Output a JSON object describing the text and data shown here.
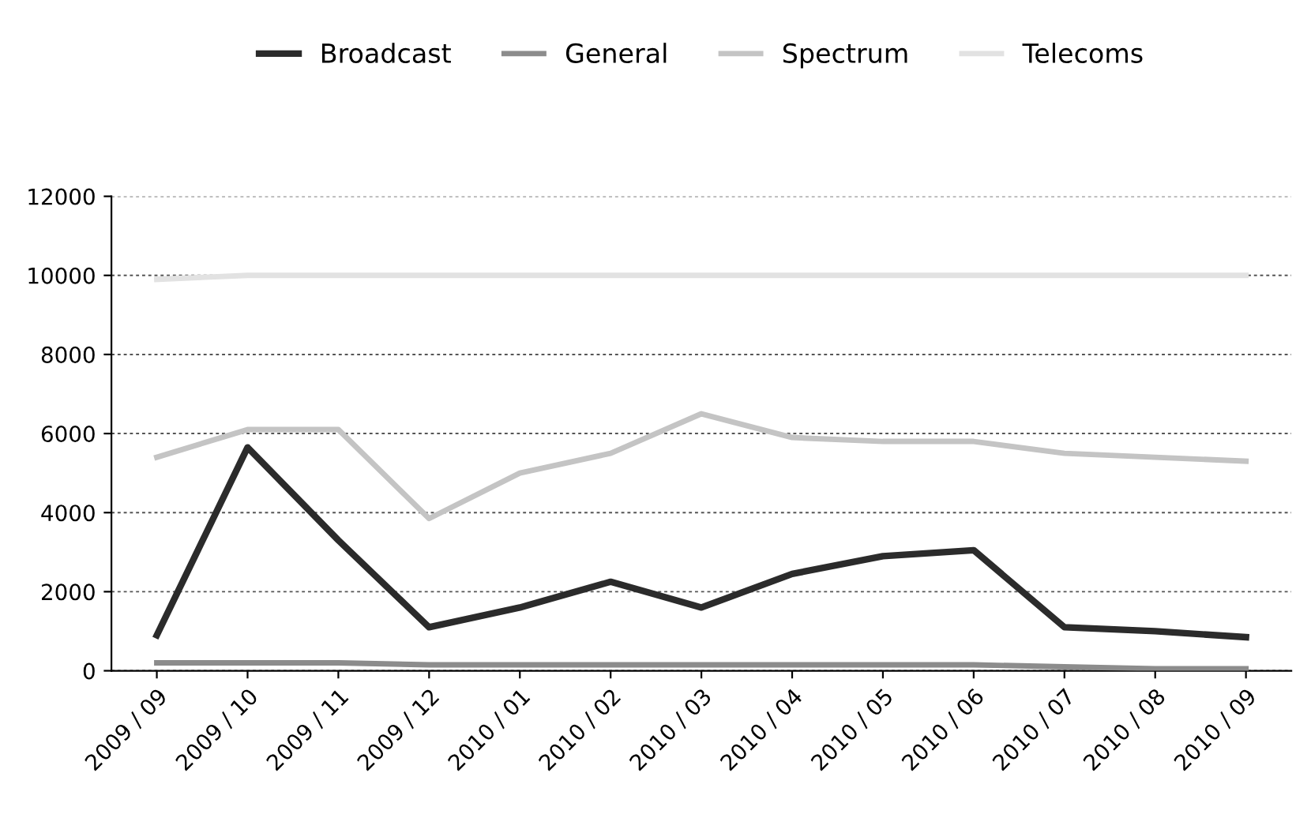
{
  "chart_data": {
    "type": "line",
    "categories": [
      "2009 / 09",
      "2009 / 10",
      "2009 / 11",
      "2009 / 12",
      "2010 / 01",
      "2010 / 02",
      "2010 / 03",
      "2010 / 04",
      "2010 / 05",
      "2010 / 06",
      "2010 / 07",
      "2010 / 08",
      "2010 / 09"
    ],
    "series": [
      {
        "name": "Broadcast",
        "color": "#2b2b2b",
        "values": [
          900,
          5650,
          3300,
          1100,
          1600,
          2250,
          1600,
          2450,
          2900,
          3050,
          1100,
          1000,
          850
        ]
      },
      {
        "name": "General",
        "color": "#8c8c8c",
        "values": [
          200,
          200,
          200,
          150,
          150,
          150,
          150,
          150,
          150,
          150,
          100,
          50,
          50
        ]
      },
      {
        "name": "Spectrum",
        "color": "#c4c4c4",
        "values": [
          5400,
          6100,
          6100,
          3850,
          5000,
          5500,
          6500,
          5900,
          5800,
          5800,
          5500,
          5400,
          5300
        ]
      },
      {
        "name": "Telecoms",
        "color": "#e2e2e2",
        "values": [
          9900,
          10000,
          10000,
          10000,
          10000,
          10000,
          10000,
          10000,
          10000,
          10000,
          10000,
          10000,
          10000
        ]
      }
    ],
    "ylim": [
      0,
      12000
    ],
    "yticks": [
      0,
      2000,
      4000,
      6000,
      8000,
      10000,
      12000
    ],
    "grid": "y",
    "legend": "top",
    "marker": "none",
    "line_style": "solid"
  }
}
